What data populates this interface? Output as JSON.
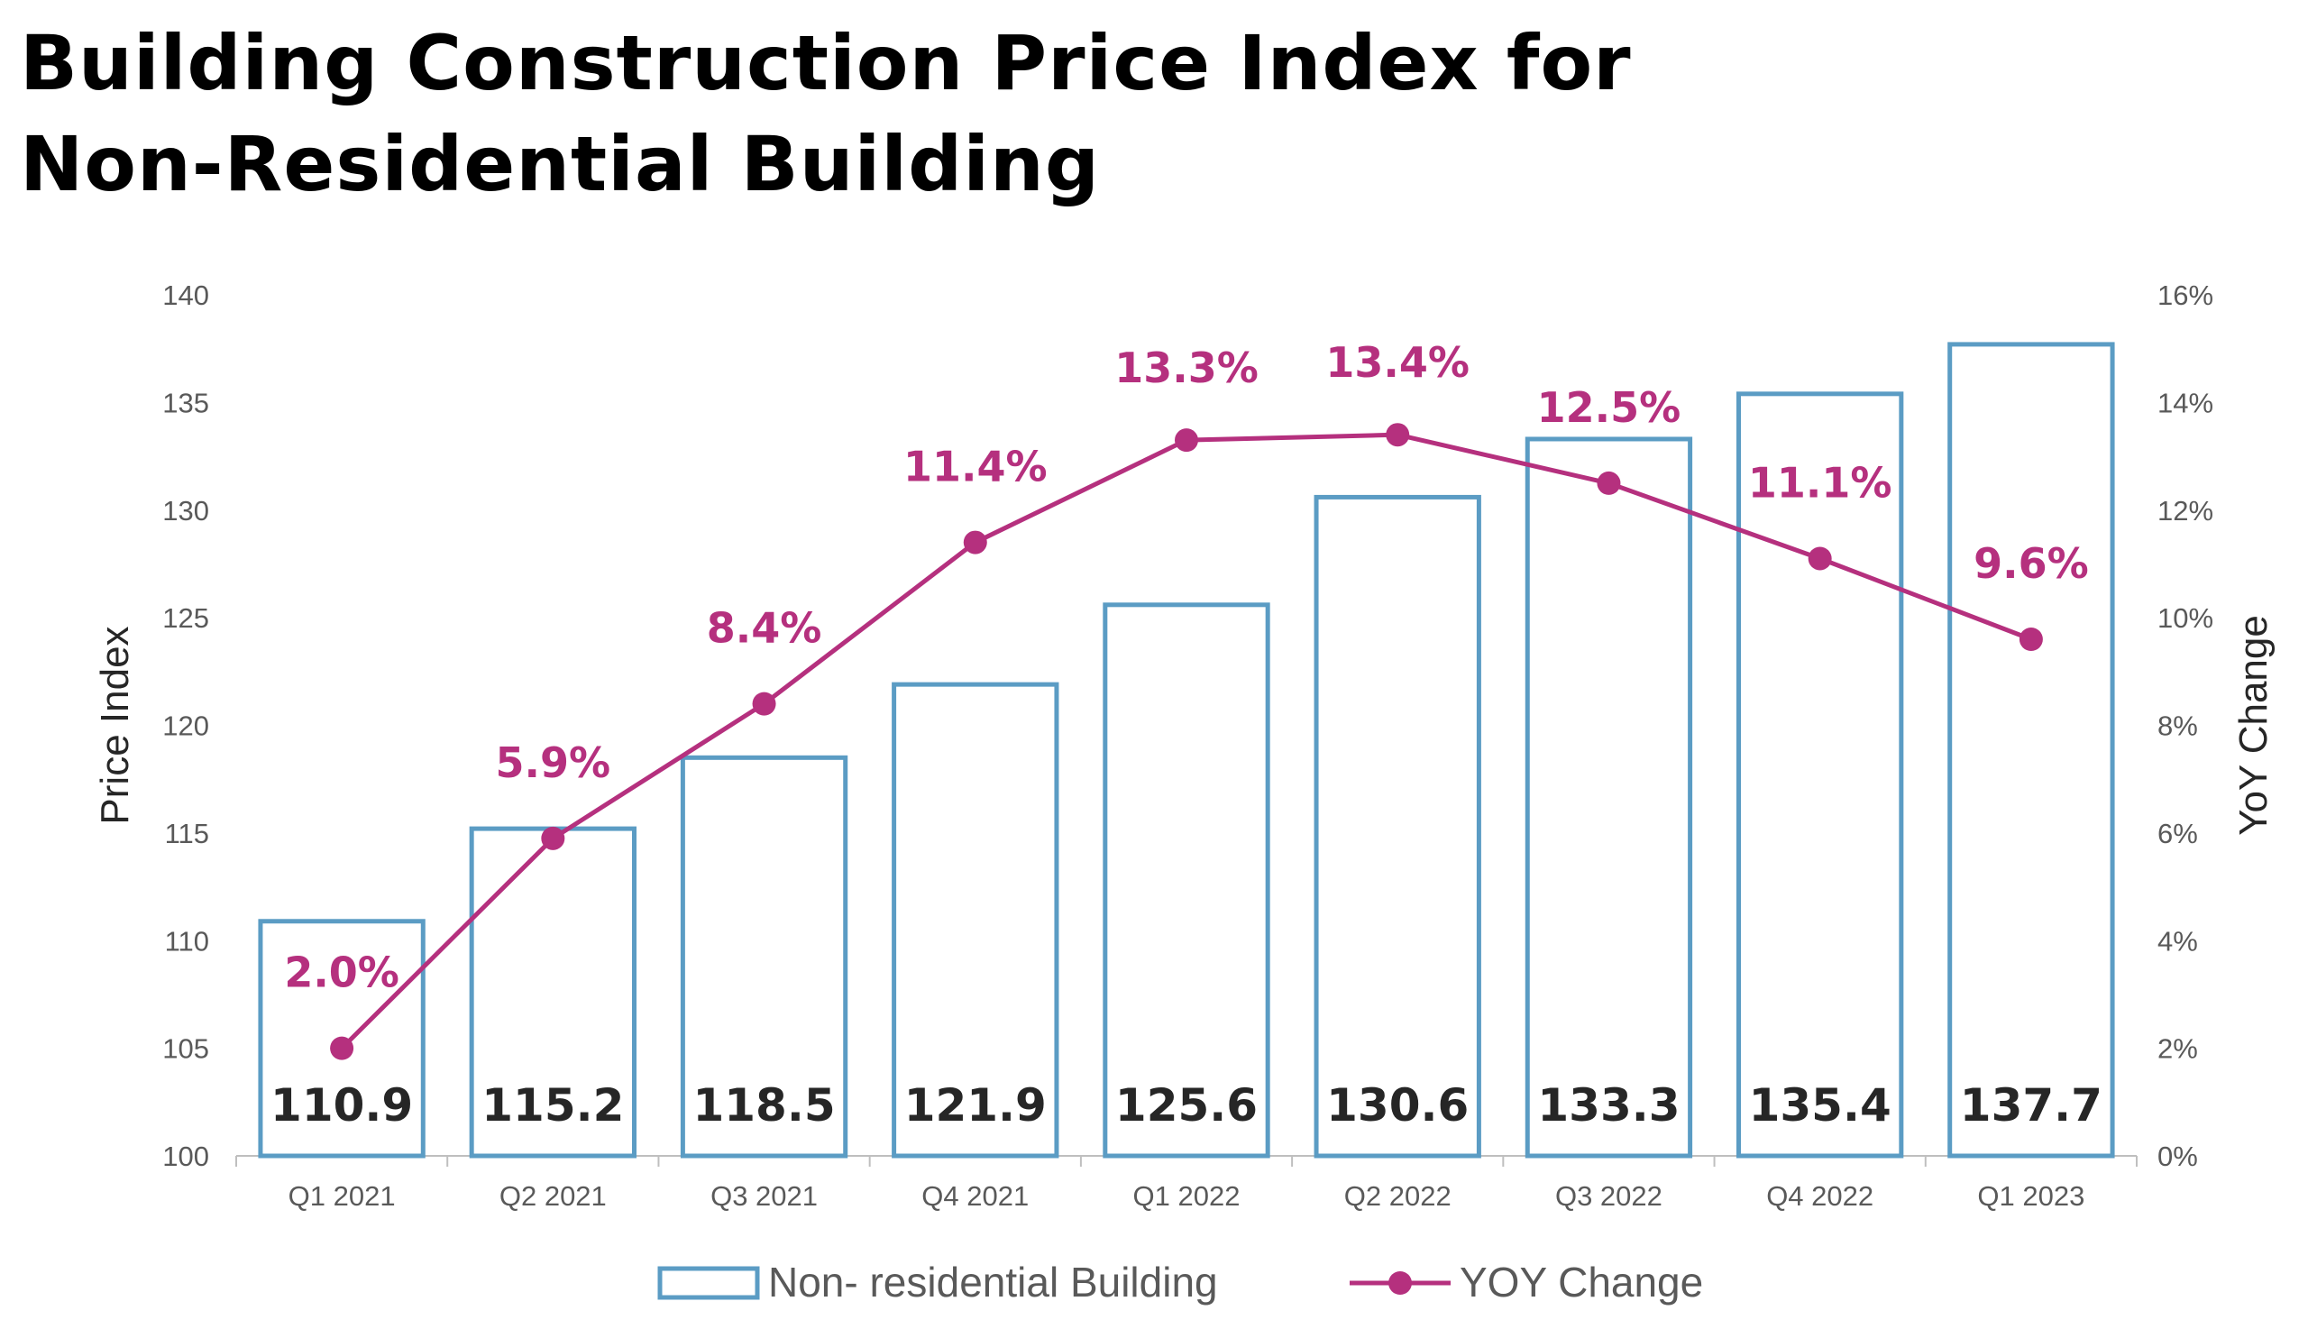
{
  "title": {
    "line1": "Building Construction Price Index for",
    "line2": "Non-Residential Building"
  },
  "colors": {
    "bar_stroke": "#5B9CC4",
    "line": "#B5307E",
    "text_dark": "#262626",
    "tick_text": "#595959"
  },
  "chart_data": {
    "type": "bar",
    "title": "Building Construction Price Index for Non-Residential Building",
    "categories": [
      "Q1 2021",
      "Q2 2021",
      "Q3 2021",
      "Q4 2021",
      "Q1 2022",
      "Q2 2022",
      "Q3 2022",
      "Q4 2022",
      "Q1 2023"
    ],
    "series": [
      {
        "name": "Non- residential Building",
        "type": "bar",
        "axis": "left",
        "values": [
          110.9,
          115.2,
          118.5,
          121.9,
          125.6,
          130.6,
          133.3,
          135.4,
          137.7
        ],
        "labels": [
          "110.9",
          "115.2",
          "118.5",
          "121.9",
          "125.6",
          "130.6",
          "133.3",
          "135.4",
          "137.7"
        ]
      },
      {
        "name": "YOY Change",
        "type": "line",
        "axis": "right",
        "values": [
          2.0,
          5.9,
          8.4,
          11.4,
          13.3,
          13.4,
          12.5,
          11.1,
          9.6
        ],
        "labels": [
          "2.0%",
          "5.9%",
          "8.4%",
          "11.4%",
          "13.3%",
          "13.4%",
          "12.5%",
          "11.1%",
          "9.6%"
        ]
      }
    ],
    "ylabel": "Price Index",
    "ylabel_right": "YoY  Change",
    "ylim": [
      100,
      140
    ],
    "ylim_right": [
      0,
      16
    ],
    "yticks": [
      "100",
      "105",
      "110",
      "115",
      "120",
      "125",
      "130",
      "135",
      "140"
    ],
    "yticks_right": [
      "0%",
      "2%",
      "4%",
      "6%",
      "8%",
      "10%",
      "12%",
      "14%",
      "16%"
    ],
    "grid": false,
    "legend_position": "bottom"
  }
}
